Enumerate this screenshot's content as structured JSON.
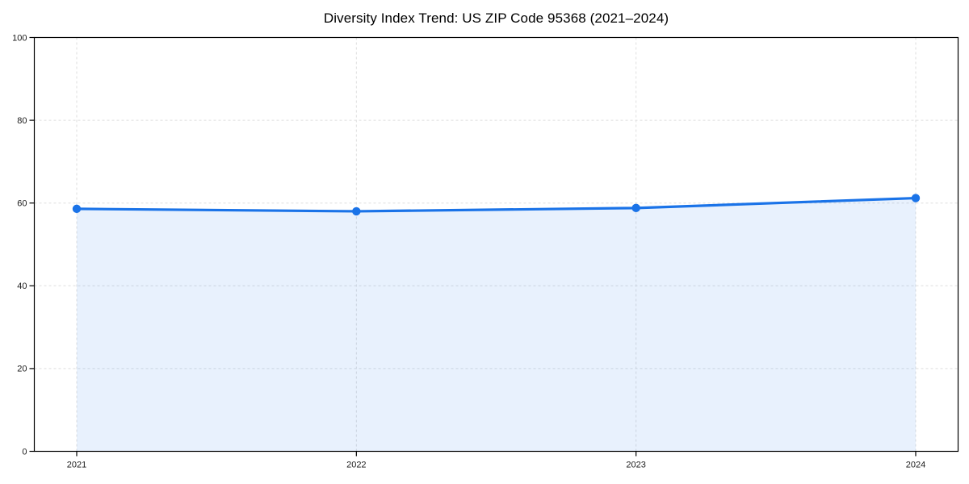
{
  "chart_data": {
    "type": "line",
    "title": "Diversity Index Trend: US ZIP Code 95368 (2021–2024)",
    "x": [
      "2021",
      "2022",
      "2023",
      "2024"
    ],
    "series": [
      {
        "name": "Diversity Index",
        "values": [
          58.6,
          58.0,
          58.8,
          61.2
        ]
      }
    ],
    "xlabel": "",
    "ylabel": "",
    "ylim": [
      0,
      100
    ],
    "yticks": [
      0,
      20,
      40,
      60,
      80,
      100
    ],
    "legend": "none",
    "grid": {
      "visible": true,
      "style": "dashed",
      "horizontal": true,
      "vertical": true
    },
    "area_fill": true,
    "marker": "circle",
    "colors": {
      "line": "#1a73e8",
      "marker": "#1a73e8",
      "area_fill": "rgba(26,115,232,0.10)",
      "grid": "#dedede",
      "axis": "#000000",
      "tick_label": "#1a1a1a",
      "title": "#000000",
      "background": "#ffffff"
    }
  }
}
